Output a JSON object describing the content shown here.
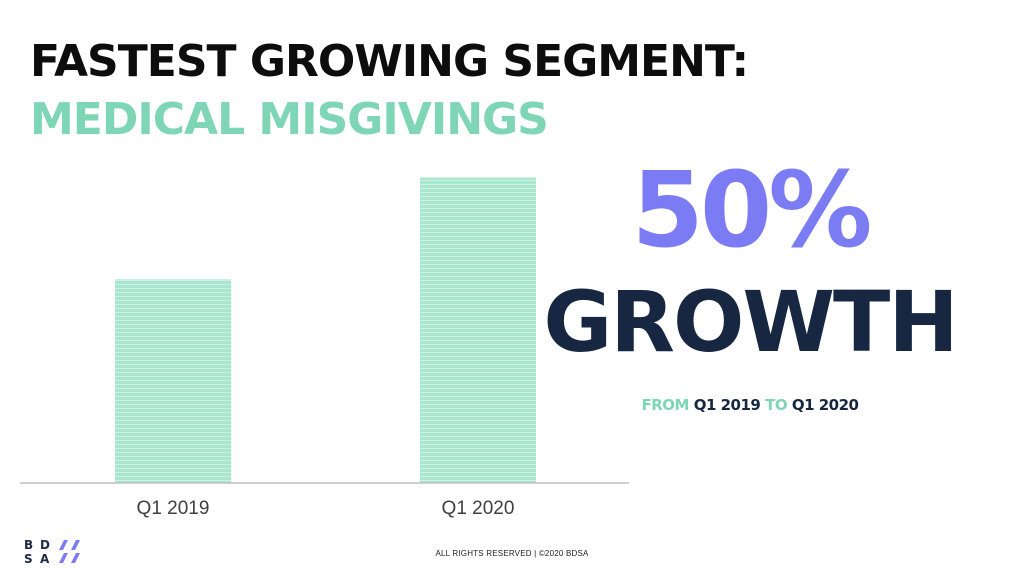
{
  "title": {
    "line1": "FASTEST GROWING SEGMENT:",
    "line2": "MEDICAL MISGIVINGS"
  },
  "highlight": {
    "percent": "50%",
    "growth_word": "GROWTH",
    "from_word": "FROM",
    "from_period": "Q1 2019",
    "to_word": "TO",
    "to_period": "Q1 2020"
  },
  "logo": {
    "letters": [
      "B",
      "D",
      "S",
      "A"
    ]
  },
  "footer": {
    "text": "ALL RIGHTS RESERVED | ©2020 BDSA"
  },
  "colors": {
    "title_dark": "#0d0d0d",
    "accent_teal": "#7fd6b6",
    "bar_fill": "#a9e6cf",
    "bar_stripe": "#ffffff",
    "percent_purple": "#7b7cf4",
    "growth_navy": "#172742",
    "axis_line": "#bfbfbf",
    "tick_text": "#404040"
  },
  "chart_data": {
    "type": "bar",
    "categories": [
      "Q1 2019",
      "Q1 2020"
    ],
    "values": [
      2,
      3
    ],
    "ylim": [
      0,
      3.3
    ],
    "grid": false,
    "legend": "none",
    "title": "",
    "xlabel": "",
    "ylabel": ""
  }
}
